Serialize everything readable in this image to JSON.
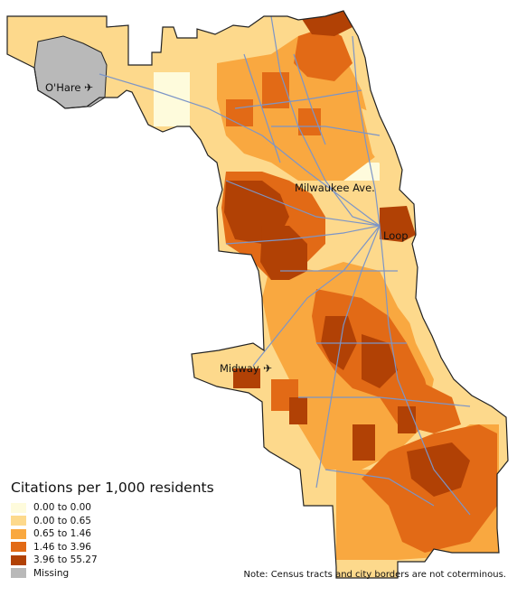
{
  "places": {
    "ohare": "O'Hare",
    "midway": "Midway",
    "milwaukee": "Milwaukee Ave.",
    "loop": "Loop"
  },
  "legend": {
    "title": "Citations per 1,000 residents",
    "items": [
      {
        "label": "0.00 to 0.00",
        "color": "#fefbdc"
      },
      {
        "label": "0.00 to 0.65",
        "color": "#fdd98c"
      },
      {
        "label": "0.65 to 1.46",
        "color": "#f9a840"
      },
      {
        "label": "1.46 to 3.96",
        "color": "#e26a16"
      },
      {
        "label": "3.96 to 55.27",
        "color": "#b14105"
      },
      {
        "label": "Missing",
        "color": "#b9b9b9"
      }
    ]
  },
  "note": "Note: Census tracts and city borders are not coterminous.",
  "colors": {
    "background": "#ffffff",
    "transit_lines": "#7c95c7",
    "border": "#222222"
  }
}
